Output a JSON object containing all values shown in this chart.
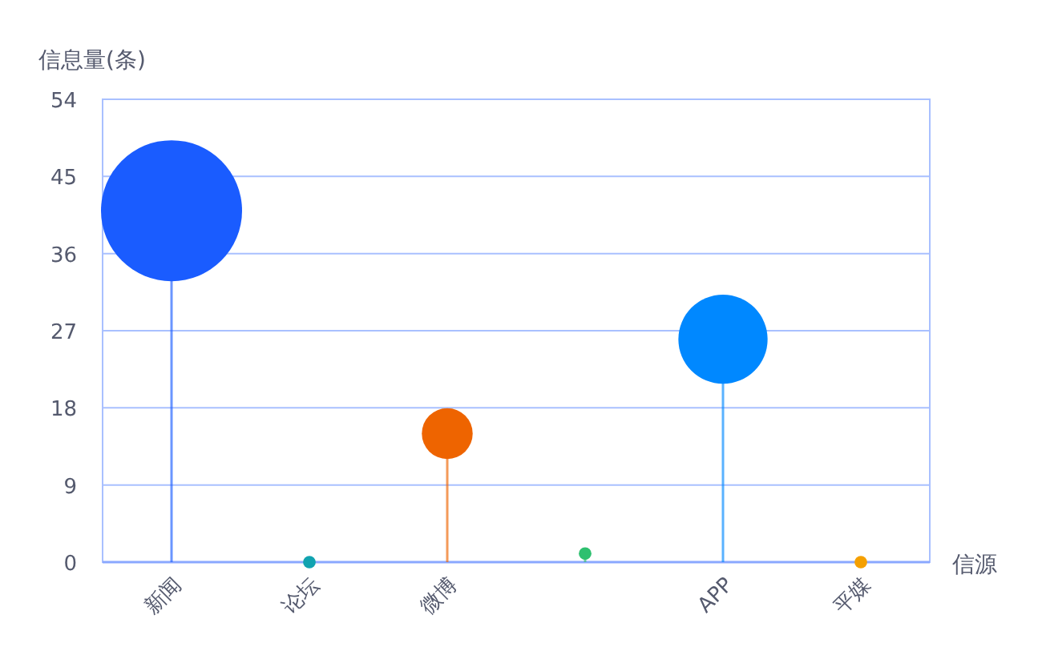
{
  "chart_data": {
    "type": "lollipop",
    "ylabel": "信息量(条)",
    "xlabel": "信源",
    "categories": [
      "新闻",
      "论坛",
      "微博",
      null,
      "APP",
      "平媒"
    ],
    "values": [
      41,
      0,
      15,
      1,
      26,
      0
    ],
    "sizes": [
      1,
      0.008,
      0.13,
      0.008,
      0.4,
      0.008
    ],
    "colors": [
      "#1a5cff",
      "#11a3b0",
      "#ee6400",
      "#2ec06f",
      "#0088ff",
      "#f5a000"
    ],
    "ylim": [
      0,
      54
    ],
    "yticks": [
      0,
      9,
      18,
      27,
      36,
      45,
      54
    ],
    "grid": "y"
  }
}
